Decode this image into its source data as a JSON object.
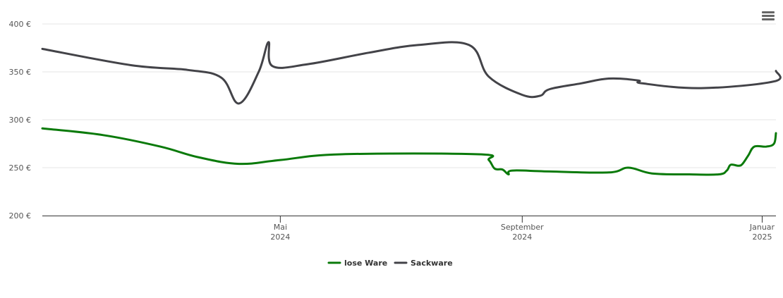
{
  "chart_data": {
    "type": "line",
    "title": "",
    "xlabel": "",
    "ylabel": "",
    "ylim": [
      200,
      400
    ],
    "y_ticks": [
      {
        "value": 400,
        "label": "400 €"
      },
      {
        "value": 350,
        "label": "350 €"
      },
      {
        "value": 300,
        "label": "300 €"
      },
      {
        "value": 250,
        "label": "250 €"
      },
      {
        "value": 200,
        "label": "200 €"
      }
    ],
    "x_range": [
      "2024-01-01",
      "2025-01-08"
    ],
    "x_ticks": [
      {
        "date": "2024-05-01",
        "line1": "Mai",
        "line2": "2024"
      },
      {
        "date": "2024-09-01",
        "line1": "September",
        "line2": "2024"
      },
      {
        "date": "2025-01-01",
        "line1": "Januar",
        "line2": "2025"
      }
    ],
    "grid": true,
    "legend_position": "bottom-center",
    "series": [
      {
        "name": "lose Ware",
        "color": "#0a7a0a",
        "points": [
          [
            "2024-01-01",
            291
          ],
          [
            "2024-02-01",
            284
          ],
          [
            "2024-03-01",
            272
          ],
          [
            "2024-03-20",
            261
          ],
          [
            "2024-04-10",
            254
          ],
          [
            "2024-05-01",
            258
          ],
          [
            "2024-06-01",
            264
          ],
          [
            "2024-08-10",
            264
          ],
          [
            "2024-08-15",
            258
          ],
          [
            "2024-08-18",
            249
          ],
          [
            "2024-08-22",
            248
          ],
          [
            "2024-08-25",
            243
          ],
          [
            "2024-08-27",
            247
          ],
          [
            "2024-09-15",
            246
          ],
          [
            "2024-10-15",
            245
          ],
          [
            "2024-10-25",
            250
          ],
          [
            "2024-11-06",
            244
          ],
          [
            "2024-11-25",
            243
          ],
          [
            "2024-12-10",
            243
          ],
          [
            "2024-12-14",
            247
          ],
          [
            "2024-12-16",
            253
          ],
          [
            "2024-12-20",
            252
          ],
          [
            "2024-12-22",
            254
          ],
          [
            "2024-12-25",
            263
          ],
          [
            "2024-12-28",
            272
          ],
          [
            "2025-01-03",
            272
          ],
          [
            "2025-01-07",
            275
          ],
          [
            "2025-01-08",
            286
          ]
        ]
      },
      {
        "name": "Sackware",
        "color": "#434348",
        "points": [
          [
            "2024-01-01",
            374
          ],
          [
            "2024-02-15",
            357
          ],
          [
            "2024-03-15",
            352
          ],
          [
            "2024-04-01",
            344
          ],
          [
            "2024-04-10",
            317
          ],
          [
            "2024-04-20",
            350
          ],
          [
            "2024-04-25",
            381
          ],
          [
            "2024-04-27",
            356
          ],
          [
            "2024-05-15",
            358
          ],
          [
            "2024-06-15",
            370
          ],
          [
            "2024-07-10",
            378
          ],
          [
            "2024-08-05",
            378
          ],
          [
            "2024-08-15",
            345
          ],
          [
            "2024-09-01",
            326
          ],
          [
            "2024-09-10",
            325
          ],
          [
            "2024-09-15",
            332
          ],
          [
            "2024-10-01",
            338
          ],
          [
            "2024-10-15",
            343
          ],
          [
            "2024-10-30",
            341
          ],
          [
            "2024-11-01",
            338
          ],
          [
            "2024-12-01",
            333
          ],
          [
            "2025-01-07",
            340
          ],
          [
            "2025-01-08",
            351
          ]
        ]
      }
    ]
  },
  "menu": {
    "icon": "hamburger-menu-icon"
  }
}
